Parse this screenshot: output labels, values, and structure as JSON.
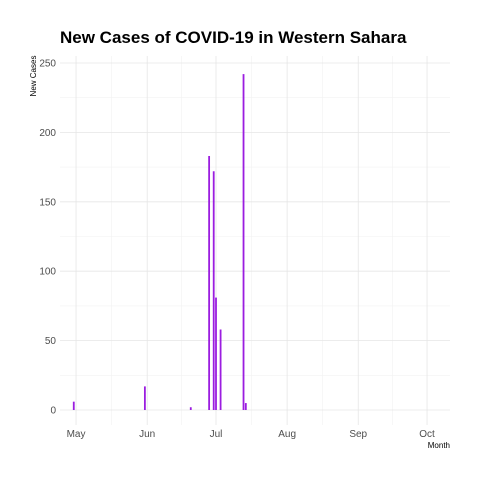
{
  "chart_data": {
    "type": "bar",
    "title": "New Cases of COVID-19 in Western Sahara",
    "xlabel": "Month",
    "ylabel": "New Cases",
    "bar_color": "#9b1de0",
    "grid": true,
    "ylim": [
      0,
      250
    ],
    "yticks": [
      0,
      50,
      100,
      150,
      200,
      250
    ],
    "xlim": [
      "2020-04-24",
      "2020-10-11"
    ],
    "xticks": [
      {
        "date": "2020-05-01",
        "label": "May"
      },
      {
        "date": "2020-06-01",
        "label": "Jun"
      },
      {
        "date": "2020-07-01",
        "label": "Jul"
      },
      {
        "date": "2020-08-01",
        "label": "Aug"
      },
      {
        "date": "2020-09-01",
        "label": "Sep"
      },
      {
        "date": "2020-10-01",
        "label": "Oct"
      }
    ],
    "x": [
      "2020-04-30",
      "2020-05-31",
      "2020-06-20",
      "2020-06-28",
      "2020-06-30",
      "2020-07-01",
      "2020-07-03",
      "2020-07-13",
      "2020-07-14"
    ],
    "values": [
      6,
      17,
      2,
      183,
      172,
      81,
      58,
      242,
      5
    ]
  }
}
